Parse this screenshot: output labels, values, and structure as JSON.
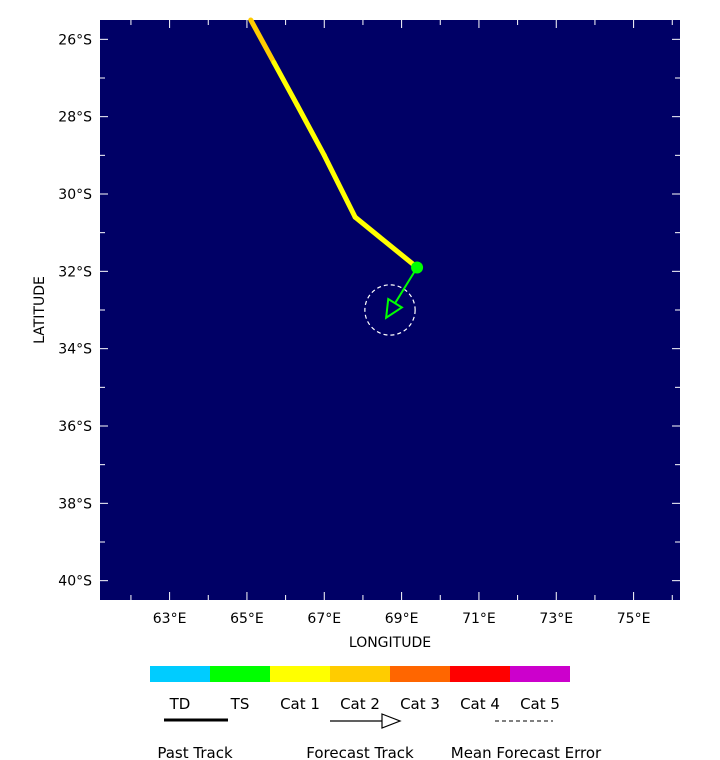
{
  "map": {
    "xlabel": "LONGITUDE",
    "ylabel": "LATITUDE",
    "background_color": "#000066",
    "lat_labels": [
      {
        "lat": -26,
        "label": "26°S"
      },
      {
        "lat": -28,
        "label": "28°S"
      },
      {
        "lat": -30,
        "label": "30°S"
      },
      {
        "lat": -32,
        "label": "32°S"
      },
      {
        "lat": -34,
        "label": "34°S"
      },
      {
        "lat": -36,
        "label": "36°S"
      },
      {
        "lat": -38,
        "label": "38°S"
      },
      {
        "lat": -40,
        "label": "40°S"
      }
    ],
    "lon_labels": [
      {
        "lon": 63,
        "label": "63°E"
      },
      {
        "lon": 65,
        "label": "65°E"
      },
      {
        "lon": 67,
        "label": "67°E"
      },
      {
        "lon": 69,
        "label": "69°E"
      },
      {
        "lon": 71,
        "label": "71°E"
      },
      {
        "lon": 73,
        "label": "73°E"
      },
      {
        "lon": 75,
        "label": "75°E"
      }
    ]
  },
  "chart_data": {
    "type": "scatter",
    "xlim": [
      61.2,
      76.2
    ],
    "ylim": [
      -40.5,
      -25.5
    ],
    "past_track": [
      {
        "lon": 65.1,
        "lat": -25.5,
        "color": "#FFCC00"
      },
      {
        "lon": 65.7,
        "lat": -26.6,
        "color": "#FFCC00"
      },
      {
        "lon": 66.3,
        "lat": -27.7,
        "color": "#FFFF00"
      },
      {
        "lon": 67.0,
        "lat": -29.0,
        "color": "#FFFF00"
      },
      {
        "lon": 67.8,
        "lat": -30.6,
        "color": "#FFFF00"
      },
      {
        "lon": 69.4,
        "lat": -31.9,
        "color": "#FFFF00"
      }
    ],
    "current_position": {
      "lon": 69.4,
      "lat": -31.9,
      "color": "#00FF00"
    },
    "forecast_track": [
      {
        "lon": 69.4,
        "lat": -31.9
      },
      {
        "lon": 68.6,
        "lat": -33.2
      }
    ],
    "forecast_color": "#00FF00",
    "error_circle": {
      "lon": 68.7,
      "lat": -33.0,
      "radius_deg": 0.65
    }
  },
  "legend": {
    "categories": [
      {
        "label": "TD",
        "color": "#00CCFF"
      },
      {
        "label": "TS",
        "color": "#00FF00"
      },
      {
        "label": "Cat 1",
        "color": "#FFFF00"
      },
      {
        "label": "Cat 2",
        "color": "#FFCC00"
      },
      {
        "label": "Cat 3",
        "color": "#FF6600"
      },
      {
        "label": "Cat 4",
        "color": "#FF0000"
      },
      {
        "label": "Cat 5",
        "color": "#CC00CC"
      }
    ],
    "past_track_label": "Past Track",
    "forecast_track_label": "Forecast Track",
    "mean_error_label": "Mean Forecast Error"
  }
}
